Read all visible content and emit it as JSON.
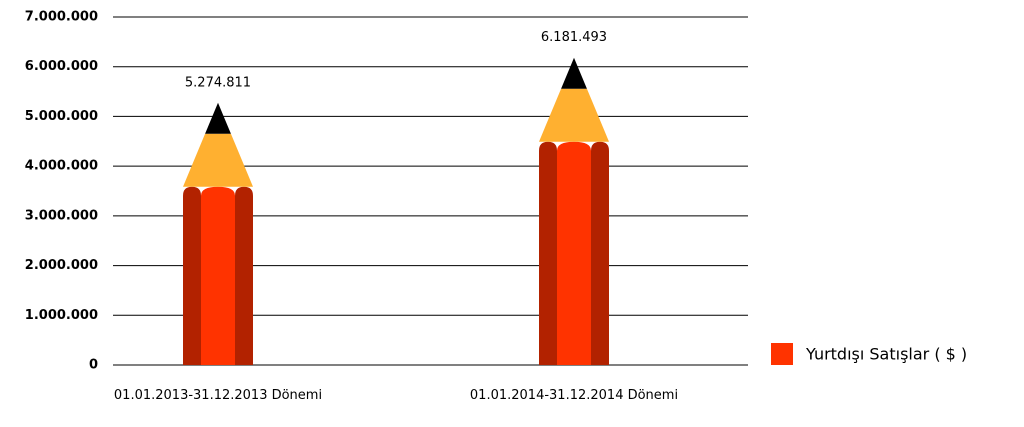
{
  "chart_data": {
    "type": "pencil",
    "categories": [
      "01.01.2013-31.12.2013 Dönemi",
      "01.01.2014-31.12.2014 Dönemi"
    ],
    "series": [
      {
        "name": "Yurtdışı Satışlar ( $ )",
        "color": "#ff3300",
        "values": [
          5274811,
          6181493
        ],
        "value_labels": [
          "5.274.811",
          "6.181.493"
        ]
      }
    ],
    "ylim": [
      0,
      7000000
    ],
    "yticks": [
      0,
      {
        "value": 1000000,
        "label": "1.000.000"
      },
      {
        "value": 2000000,
        "label": "2.000.000"
      },
      {
        "value": 3000000,
        "label": "3.000.000"
      },
      {
        "value": 4000000,
        "label": "4.000.000"
      },
      {
        "value": 5000000,
        "label": "5.000.000"
      },
      {
        "value": 6000000,
        "label": "6.000.000"
      },
      {
        "value": 7000000,
        "label": "7.000.000"
      }
    ],
    "grid": true,
    "legend": "right"
  }
}
